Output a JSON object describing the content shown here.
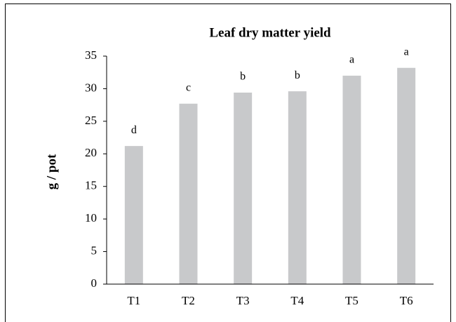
{
  "chart_data": {
    "type": "bar",
    "title": "Leaf dry matter yield",
    "ylabel": "g / pot",
    "categories": [
      "T1",
      "T2",
      "T3",
      "T4",
      "T5",
      "T6"
    ],
    "values": [
      21.2,
      27.7,
      29.4,
      29.6,
      32.0,
      33.2
    ],
    "annotations": [
      "d",
      "c",
      "b",
      "b",
      "a",
      "a"
    ],
    "color": "#c8c9cb",
    "ylim": [
      0,
      35
    ],
    "yticks": [
      0,
      5,
      10,
      15,
      20,
      25,
      30,
      35
    ],
    "grid": false
  }
}
